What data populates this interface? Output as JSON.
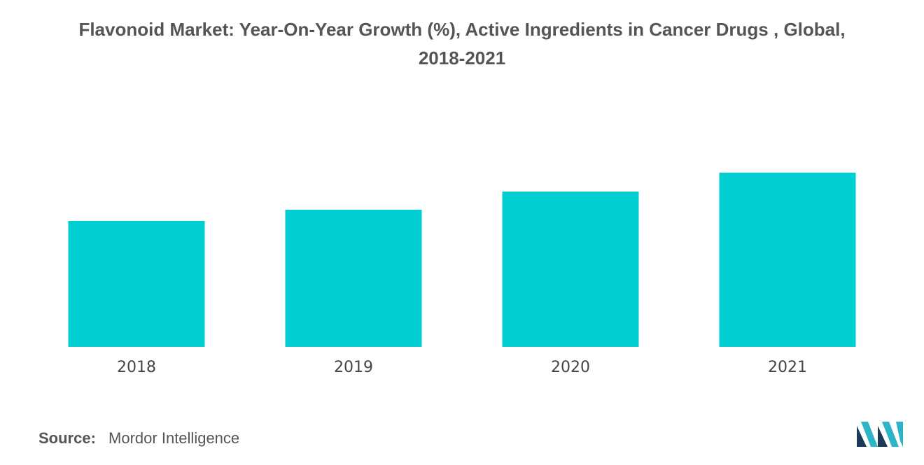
{
  "title_lines": [
    "Flavonoid Market: Year-On-Year Growth (%), Active Ingredients in Cancer Drugs , Global,",
    "2018-2021"
  ],
  "source": {
    "label": "Source:",
    "value": "Mordor Intelligence"
  },
  "colors": {
    "bar": "#00CED1",
    "text": "#555555",
    "tick_text": "#444444",
    "logo_dark": "#1B3A57",
    "logo_accent": "#2BB5C7"
  },
  "chart_data": {
    "type": "bar",
    "title": "Flavonoid Market: Year-On-Year Growth (%), Active Ingredients in Cancer Drugs , Global, 2018-2021",
    "categories": [
      "2018",
      "2019",
      "2020",
      "2021"
    ],
    "values": [
      7.3,
      7.95,
      9.0,
      10.1
    ],
    "ylim": [
      0,
      12
    ],
    "xlabel": "",
    "ylabel": "",
    "grid": false,
    "legend": "none"
  }
}
